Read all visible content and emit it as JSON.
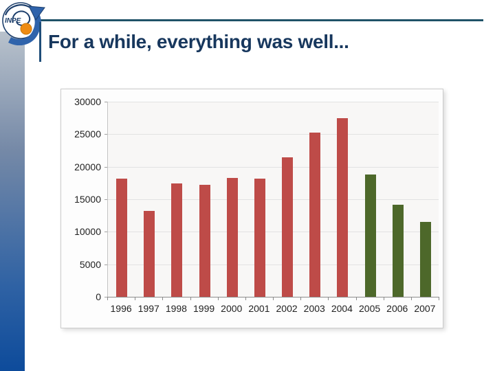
{
  "slide": {
    "title": "For a while, everything was well...",
    "logo_text": "INPE"
  },
  "colors": {
    "title_text": "#17375d",
    "top_rule": "#1f5268",
    "title_accent_line": "#1f4e79",
    "sidebar_gradient_top": "#b9c2cc",
    "sidebar_gradient_bottom": "#0d4b9b",
    "bar_red": "#be4b48",
    "bar_green": "#4d682a",
    "logo_blue": "#1c3e6b",
    "logo_arrow_blue": "#2f63ab",
    "logo_orange": "#ee8b13",
    "chart_background": "#fdfdfd",
    "plot_background": "#f8f7f6",
    "gridline": "#e2e2e2",
    "axis_line": "#8b8b8b"
  },
  "chart_data": {
    "type": "bar",
    "title": "",
    "xlabel": "",
    "ylabel": "",
    "categories": [
      "1996",
      "1997",
      "1998",
      "1999",
      "2000",
      "2001",
      "2002",
      "2003",
      "2004",
      "2005",
      "2006",
      "2007"
    ],
    "values": [
      18161,
      13227,
      17383,
      17259,
      18226,
      18165,
      21394,
      25247,
      27423,
      18846,
      14109,
      11532
    ],
    "bar_colors": [
      "#be4b48",
      "#be4b48",
      "#be4b48",
      "#be4b48",
      "#be4b48",
      "#be4b48",
      "#be4b48",
      "#be4b48",
      "#be4b48",
      "#4d682a",
      "#4d682a",
      "#4d682a"
    ],
    "ylim": [
      0,
      30000
    ],
    "ytick_step": 5000,
    "ytick_labels": [
      "30000",
      "25000",
      "20000",
      "15000",
      "10000",
      "5000",
      "0"
    ],
    "grid": true,
    "legend": "none"
  }
}
